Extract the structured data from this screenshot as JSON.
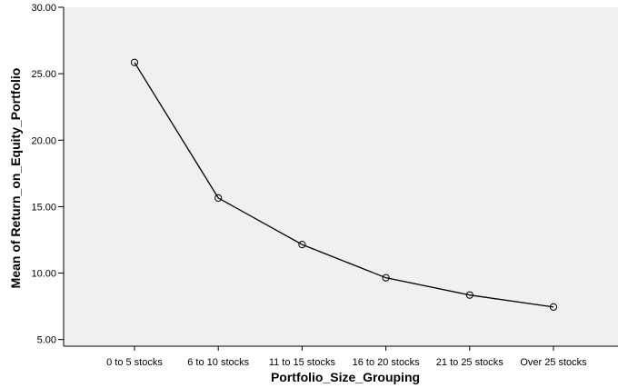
{
  "chart_data": {
    "type": "line",
    "title": "",
    "xlabel": "Portfolio_Size_Grouping",
    "ylabel": "Mean of Return_on_Equity_Portfolio",
    "categories": [
      "0 to 5 stocks",
      "6 to 10 stocks",
      "11 to 15 stocks",
      "16 to 20 stocks",
      "21 to 25 stocks",
      "Over 25 stocks"
    ],
    "series": [
      {
        "values": [
          25.85,
          15.65,
          12.15,
          9.65,
          8.35,
          7.45
        ]
      }
    ],
    "ylim": [
      4.5,
      30.0
    ],
    "yticks": [
      5.0,
      10.0,
      15.0,
      20.0,
      25.0,
      30.0
    ],
    "ytick_labels": [
      "5.00",
      "10.00",
      "15.00",
      "20.00",
      "25.00",
      "30.00"
    ],
    "grid": false,
    "marker": "open-circle",
    "colors": {
      "plot_background": "#f0f0f0",
      "line": "#000000",
      "axis": "#000000"
    }
  }
}
